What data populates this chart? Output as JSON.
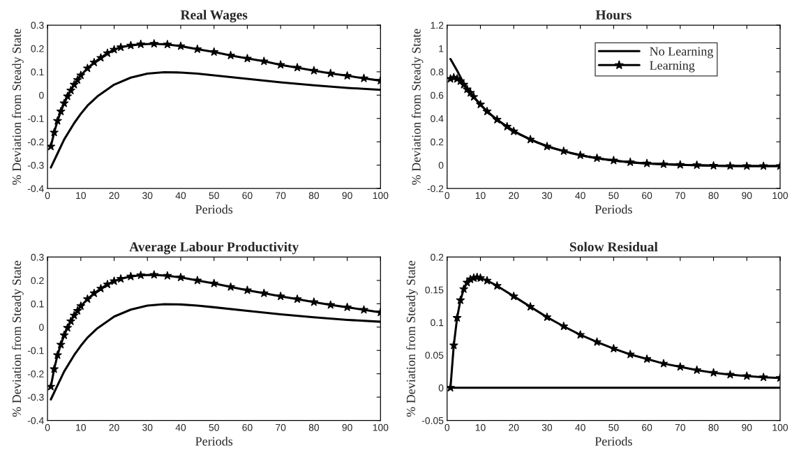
{
  "chart_data": [
    {
      "type": "line",
      "title": "Real Wages",
      "xlabel": "Periods",
      "ylabel": "% Deviation from Steady State",
      "xlim": [
        0,
        100
      ],
      "xticks": [
        0,
        10,
        20,
        30,
        40,
        50,
        60,
        70,
        80,
        90,
        100
      ],
      "ylim": [
        -0.4,
        0.3
      ],
      "yticks": [
        -0.4,
        -0.3,
        -0.2,
        -0.1,
        0,
        0.1,
        0.2,
        0.3
      ],
      "series": [
        {
          "color": "#000000",
          "marker": "none",
          "x": [
            1,
            3,
            5,
            8,
            10,
            12,
            15,
            18,
            20,
            25,
            30,
            35,
            40,
            45,
            50,
            60,
            70,
            80,
            90,
            100
          ],
          "values": [
            -0.31,
            -0.25,
            -0.19,
            -0.12,
            -0.08,
            -0.045,
            -0.005,
            0.025,
            0.045,
            0.075,
            0.092,
            0.098,
            0.097,
            0.092,
            0.085,
            0.07,
            0.055,
            0.042,
            0.031,
            0.023
          ]
        },
        {
          "color": "#000000",
          "marker": "star",
          "x": [
            1,
            2,
            3,
            4,
            5,
            6,
            7,
            8,
            9,
            10,
            12,
            14,
            16,
            18,
            20,
            22,
            25,
            28,
            32,
            36,
            40,
            45,
            50,
            55,
            60,
            65,
            70,
            75,
            80,
            85,
            90,
            95,
            100
          ],
          "values": [
            -0.22,
            -0.16,
            -0.11,
            -0.07,
            -0.035,
            -0.005,
            0.02,
            0.045,
            0.065,
            0.085,
            0.115,
            0.14,
            0.16,
            0.18,
            0.195,
            0.205,
            0.213,
            0.218,
            0.22,
            0.217,
            0.21,
            0.197,
            0.185,
            0.17,
            0.157,
            0.145,
            0.13,
            0.118,
            0.105,
            0.093,
            0.083,
            0.072,
            0.062
          ]
        }
      ]
    },
    {
      "type": "line",
      "title": "Hours",
      "xlabel": "Periods",
      "ylabel": "% Deviation from Steady State",
      "xlim": [
        0,
        100
      ],
      "xticks": [
        0,
        10,
        20,
        30,
        40,
        50,
        60,
        70,
        80,
        90,
        100
      ],
      "ylim": [
        -0.2,
        1.2
      ],
      "yticks": [
        -0.2,
        0,
        0.2,
        0.4,
        0.6,
        0.8,
        1,
        1.2
      ],
      "legend": "top right",
      "series": [
        {
          "name": "No Learning",
          "color": "#000000",
          "marker": "none",
          "x": [
            1,
            3,
            5,
            7,
            9,
            11,
            14,
            17,
            22,
            27,
            32,
            37,
            42,
            47,
            52,
            57,
            62,
            72,
            82,
            92,
            100
          ],
          "values": [
            0.91,
            0.81,
            0.7,
            0.62,
            0.55,
            0.49,
            0.41,
            0.35,
            0.26,
            0.195,
            0.145,
            0.105,
            0.075,
            0.05,
            0.033,
            0.02,
            0.012,
            0.001,
            -0.006,
            -0.008,
            -0.008
          ]
        },
        {
          "name": "Learning",
          "color": "#000000",
          "marker": "star",
          "x": [
            1,
            2,
            3,
            4,
            5,
            6,
            7,
            8,
            10,
            12,
            15,
            18,
            20,
            25,
            30,
            35,
            40,
            45,
            50,
            55,
            60,
            65,
            70,
            75,
            80,
            85,
            90,
            95,
            100
          ],
          "values": [
            0.74,
            0.75,
            0.74,
            0.72,
            0.69,
            0.65,
            0.62,
            0.585,
            0.52,
            0.46,
            0.39,
            0.33,
            0.29,
            0.22,
            0.16,
            0.12,
            0.085,
            0.06,
            0.04,
            0.025,
            0.015,
            0.008,
            0.003,
            0,
            -0.005,
            -0.007,
            -0.008,
            -0.008,
            -0.008
          ]
        }
      ]
    },
    {
      "type": "line",
      "title": "Average Labour Productivity",
      "xlabel": "Periods",
      "ylabel": "% Deviation from Steady State",
      "xlim": [
        0,
        100
      ],
      "xticks": [
        0,
        10,
        20,
        30,
        40,
        50,
        60,
        70,
        80,
        90,
        100
      ],
      "ylim": [
        -0.4,
        0.3
      ],
      "yticks": [
        -0.4,
        -0.3,
        -0.2,
        -0.1,
        0,
        0.1,
        0.2,
        0.3
      ],
      "series": [
        {
          "color": "#000000",
          "marker": "none",
          "x": [
            1,
            3,
            5,
            8,
            10,
            12,
            15,
            18,
            20,
            25,
            30,
            35,
            40,
            45,
            50,
            60,
            70,
            80,
            90,
            100
          ],
          "values": [
            -0.31,
            -0.25,
            -0.19,
            -0.12,
            -0.08,
            -0.045,
            -0.005,
            0.025,
            0.045,
            0.075,
            0.092,
            0.098,
            0.097,
            0.092,
            0.085,
            0.07,
            0.055,
            0.042,
            0.031,
            0.023
          ]
        },
        {
          "color": "#000000",
          "marker": "star",
          "x": [
            1,
            2,
            3,
            4,
            5,
            6,
            7,
            8,
            9,
            10,
            12,
            14,
            16,
            18,
            20,
            22,
            25,
            28,
            32,
            36,
            40,
            45,
            50,
            55,
            60,
            65,
            70,
            75,
            80,
            85,
            90,
            95,
            100
          ],
          "values": [
            -0.255,
            -0.18,
            -0.12,
            -0.075,
            -0.035,
            -0.003,
            0.025,
            0.05,
            0.07,
            0.09,
            0.12,
            0.145,
            0.165,
            0.183,
            0.197,
            0.207,
            0.217,
            0.222,
            0.224,
            0.22,
            0.213,
            0.2,
            0.187,
            0.172,
            0.158,
            0.145,
            0.132,
            0.12,
            0.107,
            0.095,
            0.085,
            0.074,
            0.063
          ]
        }
      ]
    },
    {
      "type": "line",
      "title": "Solow Residual",
      "xlabel": "Periods",
      "ylabel": "% Deviation from Steady State",
      "xlim": [
        0,
        100
      ],
      "xticks": [
        0,
        10,
        20,
        30,
        40,
        50,
        60,
        70,
        80,
        90,
        100
      ],
      "ylim": [
        -0.05,
        0.2
      ],
      "yticks": [
        -0.05,
        0,
        0.05,
        0.1,
        0.15,
        0.2
      ],
      "series": [
        {
          "color": "#000000",
          "marker": "none",
          "x": [
            1,
            25,
            50,
            75,
            100
          ],
          "values": [
            0,
            0,
            0,
            0,
            0
          ]
        },
        {
          "color": "#000000",
          "marker": "star",
          "x": [
            1,
            2,
            3,
            4,
            5,
            6,
            7,
            8,
            9,
            10,
            12,
            15,
            20,
            25,
            30,
            35,
            40,
            45,
            50,
            55,
            60,
            65,
            70,
            75,
            80,
            85,
            90,
            95,
            100
          ],
          "values": [
            0,
            0.065,
            0.107,
            0.134,
            0.151,
            0.161,
            0.166,
            0.168,
            0.169,
            0.168,
            0.164,
            0.156,
            0.14,
            0.124,
            0.108,
            0.094,
            0.081,
            0.07,
            0.06,
            0.051,
            0.044,
            0.037,
            0.032,
            0.027,
            0.023,
            0.02,
            0.018,
            0.016,
            0.015
          ]
        }
      ]
    }
  ]
}
